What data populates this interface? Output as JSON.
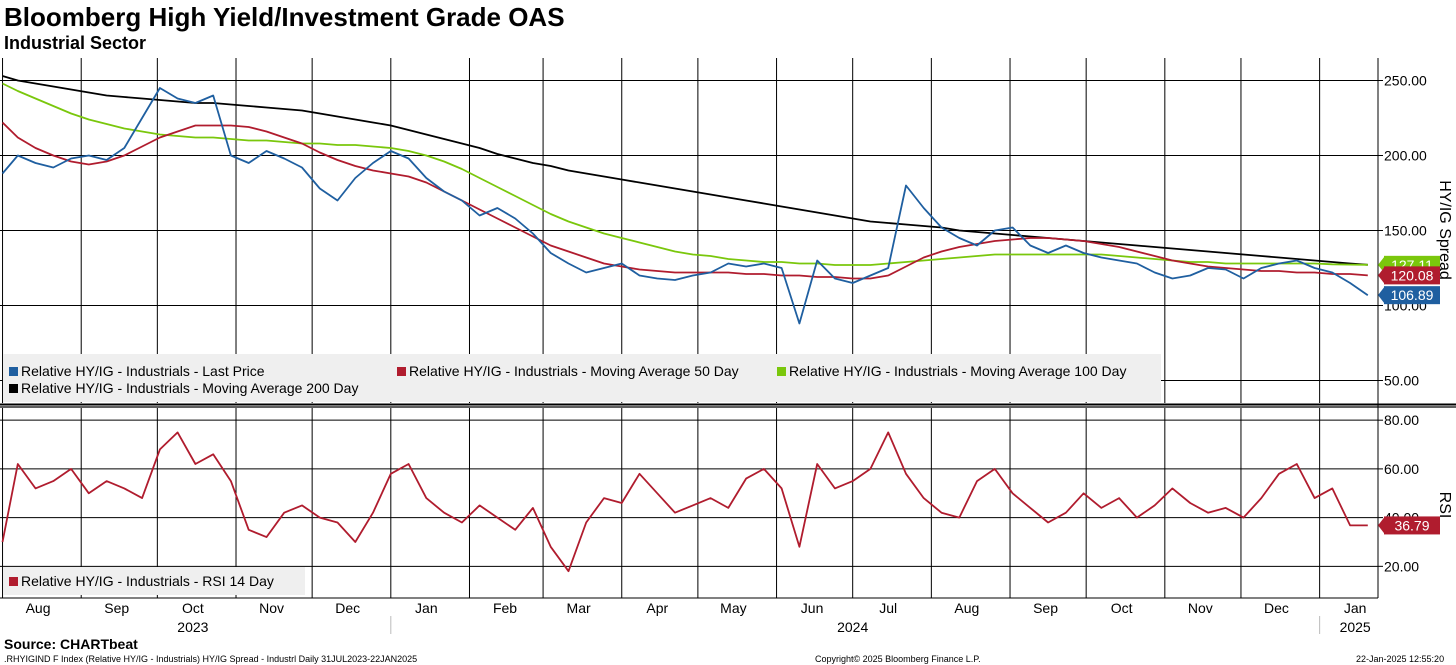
{
  "title": "Bloomberg High Yield/Investment Grade OAS",
  "subtitle": "Industrial Sector",
  "footer": {
    "source": "Source: CHARTbeat",
    "ticker": ".RHYIGIND F Index (Relative HY/IG - Industrials) HY/IG Spread - Industrl  Daily 31JUL2023-22JAN2025",
    "copyright": "Copyright© 2025 Bloomberg Finance L.P.",
    "timestamp": "22-Jan-2025 12:55:20"
  },
  "chart_data": [
    {
      "type": "line",
      "ylabel": "HY/IG Spread",
      "ylim": [
        35,
        265
      ],
      "yticks": [
        50,
        100,
        150,
        200,
        250
      ],
      "ytick_labels": [
        "50.00",
        "100.00",
        "150.00",
        "200.00",
        "250.00"
      ],
      "grid": true,
      "legend_placement": "bottom-left",
      "x_dates": [
        "2023-08-01",
        "2023-08-07",
        "2023-08-14",
        "2023-08-21",
        "2023-08-28",
        "2023-09-04",
        "2023-09-11",
        "2023-09-18",
        "2023-09-25",
        "2023-10-02",
        "2023-10-09",
        "2023-10-16",
        "2023-10-23",
        "2023-10-30",
        "2023-11-06",
        "2023-11-13",
        "2023-11-20",
        "2023-11-27",
        "2023-12-04",
        "2023-12-11",
        "2023-12-18",
        "2023-12-25",
        "2024-01-01",
        "2024-01-08",
        "2024-01-15",
        "2024-01-22",
        "2024-01-29",
        "2024-02-05",
        "2024-02-12",
        "2024-02-19",
        "2024-02-26",
        "2024-03-04",
        "2024-03-11",
        "2024-03-18",
        "2024-03-25",
        "2024-04-01",
        "2024-04-08",
        "2024-04-15",
        "2024-04-22",
        "2024-04-29",
        "2024-05-06",
        "2024-05-13",
        "2024-05-20",
        "2024-05-27",
        "2024-06-03",
        "2024-06-10",
        "2024-06-17",
        "2024-06-24",
        "2024-07-01",
        "2024-07-08",
        "2024-07-15",
        "2024-07-22",
        "2024-07-29",
        "2024-08-05",
        "2024-08-12",
        "2024-08-19",
        "2024-08-26",
        "2024-09-02",
        "2024-09-09",
        "2024-09-16",
        "2024-09-23",
        "2024-09-30",
        "2024-10-07",
        "2024-10-14",
        "2024-10-21",
        "2024-10-28",
        "2024-11-04",
        "2024-11-11",
        "2024-11-18",
        "2024-11-25",
        "2024-12-02",
        "2024-12-09",
        "2024-12-16",
        "2024-12-23",
        "2024-12-30",
        "2025-01-06",
        "2025-01-13",
        "2025-01-20"
      ],
      "series": [
        {
          "name": "Relative HY/IG - Industrials - Last Price",
          "color": "#1f5fa0",
          "last_label": "106.89",
          "values": [
            188,
            200,
            195,
            192,
            198,
            200,
            197,
            205,
            225,
            245,
            238,
            235,
            240,
            200,
            195,
            203,
            198,
            192,
            178,
            170,
            185,
            195,
            203,
            198,
            185,
            176,
            170,
            160,
            165,
            158,
            148,
            135,
            128,
            122,
            125,
            128,
            120,
            118,
            117,
            120,
            122,
            128,
            126,
            128,
            125,
            88,
            130,
            118,
            115,
            120,
            125,
            180,
            165,
            152,
            145,
            140,
            150,
            152,
            140,
            135,
            140,
            135,
            132,
            130,
            128,
            122,
            118,
            120,
            125,
            124,
            118,
            125,
            128,
            130,
            125,
            122,
            115,
            106.89
          ]
        },
        {
          "name": "Relative HY/IG - Industrials - Moving Average 50 Day",
          "color": "#b01c2e",
          "last_label": "120.08",
          "values": [
            222,
            212,
            205,
            200,
            196,
            194,
            196,
            200,
            206,
            212,
            216,
            220,
            220,
            220,
            219,
            216,
            212,
            208,
            202,
            197,
            193,
            190,
            188,
            186,
            182,
            176,
            170,
            164,
            158,
            152,
            146,
            140,
            136,
            132,
            128,
            126,
            124,
            123,
            122,
            122,
            122,
            122,
            121,
            121,
            120,
            120,
            119,
            119,
            118,
            118,
            120,
            126,
            132,
            136,
            139,
            141,
            143,
            144,
            145,
            145,
            144,
            143,
            141,
            139,
            136,
            133,
            130,
            128,
            126,
            125,
            124,
            123,
            123,
            122,
            122,
            121,
            121,
            120.08
          ]
        },
        {
          "name": "Relative HY/IG - Industrials - Moving Average 100 Day",
          "color": "#7ac70c",
          "last_label": "127.11",
          "values": [
            248,
            243,
            238,
            233,
            228,
            224,
            221,
            218,
            216,
            214,
            213,
            212,
            212,
            211,
            210,
            210,
            209,
            208,
            208,
            207,
            207,
            206,
            205,
            203,
            200,
            196,
            191,
            185,
            179,
            173,
            167,
            161,
            156,
            152,
            148,
            145,
            142,
            139,
            136,
            134,
            133,
            131,
            130,
            129,
            129,
            128,
            128,
            127,
            127,
            127,
            128,
            129,
            130,
            131,
            132,
            133,
            134,
            134,
            134,
            134,
            134,
            134,
            134,
            133,
            132,
            131,
            130,
            129,
            129,
            128,
            128,
            128,
            128,
            128,
            128,
            127.5,
            127.3,
            127.11
          ]
        },
        {
          "name": "Relative HY/IG - Industrials - Moving Average 200 Day",
          "color": "#000000",
          "last_label": "127.11",
          "values": [
            253,
            250,
            248,
            246,
            244,
            242,
            240,
            239,
            238,
            237,
            236,
            235,
            235,
            234,
            233,
            232,
            231,
            230,
            228,
            226,
            224,
            222,
            220,
            217,
            214,
            211,
            208,
            205,
            201,
            198,
            195,
            193,
            190,
            188,
            186,
            184,
            182,
            180,
            178,
            176,
            174,
            172,
            170,
            168,
            166,
            164,
            162,
            160,
            158,
            156,
            155,
            154,
            153,
            152,
            150,
            149,
            148,
            147,
            146,
            145,
            144,
            143,
            142,
            141,
            140,
            139,
            138,
            137,
            136,
            135,
            134,
            133,
            132,
            131,
            130,
            129,
            128,
            127.11
          ]
        }
      ]
    },
    {
      "type": "line",
      "ylabel": "RSI",
      "ylim": [
        7,
        85
      ],
      "yticks": [
        20,
        40,
        60,
        80
      ],
      "ytick_labels": [
        "20.00",
        "40.00",
        "60.00",
        "80.00"
      ],
      "grid": true,
      "legend_placement": "bottom-left",
      "series": [
        {
          "name": "Relative HY/IG - Industrials - RSI 14 Day",
          "color": "#b01c2e",
          "last_label": "36.79",
          "values": [
            30,
            62,
            52,
            55,
            60,
            50,
            55,
            52,
            48,
            68,
            75,
            62,
            66,
            55,
            35,
            32,
            42,
            45,
            40,
            38,
            30,
            42,
            58,
            62,
            48,
            42,
            38,
            45,
            40,
            35,
            44,
            28,
            18,
            38,
            48,
            46,
            58,
            50,
            42,
            45,
            48,
            44,
            56,
            60,
            52,
            28,
            62,
            52,
            55,
            60,
            75,
            58,
            48,
            42,
            40,
            55,
            60,
            50,
            44,
            38,
            42,
            50,
            44,
            48,
            40,
            45,
            52,
            46,
            42,
            44,
            40,
            48,
            58,
            62,
            48,
            52,
            36.79,
            36.79
          ]
        }
      ]
    }
  ],
  "x_axis": {
    "month_labels": [
      {
        "label": "Aug",
        "date": "2023-08-15"
      },
      {
        "label": "Sep",
        "date": "2023-09-15"
      },
      {
        "label": "Oct",
        "date": "2023-10-15"
      },
      {
        "label": "Nov",
        "date": "2023-11-15"
      },
      {
        "label": "Dec",
        "date": "2023-12-15"
      },
      {
        "label": "Jan",
        "date": "2024-01-15"
      },
      {
        "label": "Feb",
        "date": "2024-02-15"
      },
      {
        "label": "Mar",
        "date": "2024-03-15"
      },
      {
        "label": "Apr",
        "date": "2024-04-15"
      },
      {
        "label": "May",
        "date": "2024-05-15"
      },
      {
        "label": "Jun",
        "date": "2024-06-15"
      },
      {
        "label": "Jul",
        "date": "2024-07-15"
      },
      {
        "label": "Aug",
        "date": "2024-08-15"
      },
      {
        "label": "Sep",
        "date": "2024-09-15"
      },
      {
        "label": "Oct",
        "date": "2024-10-15"
      },
      {
        "label": "Nov",
        "date": "2024-11-15"
      },
      {
        "label": "Dec",
        "date": "2024-12-15"
      },
      {
        "label": "Jan",
        "date": "2025-01-15"
      }
    ],
    "year_labels": [
      {
        "label": "2023",
        "date": "2023-10-15"
      },
      {
        "label": "2024",
        "date": "2024-07-01"
      },
      {
        "label": "2025",
        "date": "2025-01-15"
      }
    ]
  }
}
